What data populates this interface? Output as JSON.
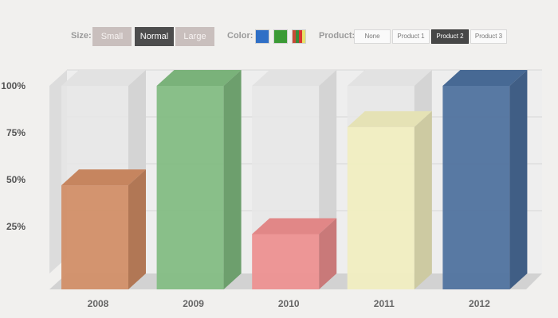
{
  "controls": {
    "size_label": "Size:",
    "sizes": [
      "Small",
      "Normal",
      "Large"
    ],
    "selected_size": "Normal",
    "color_label": "Color:",
    "color_swatches": [
      {
        "name": "blue-swatch",
        "colors": [
          "#2f6fc6"
        ]
      },
      {
        "name": "green-swatch",
        "colors": [
          "#3b9a35"
        ]
      },
      {
        "name": "multicolor-swatch",
        "colors": [
          "#c84a36",
          "#3b8a3a",
          "#d9352f",
          "#e6e36b"
        ]
      }
    ],
    "product_label": "Product:",
    "products": [
      "None",
      "Product 1",
      "Product 2",
      "Product 3"
    ],
    "selected_product": "Product 2"
  },
  "chart_data": {
    "type": "bar",
    "categories": [
      "2008",
      "2009",
      "2010",
      "2011",
      "2012"
    ],
    "values": [
      47,
      100,
      21,
      78,
      100
    ],
    "colors": [
      "#d08c64",
      "#80bb80",
      "#ed8e8e",
      "#f1eebf",
      "#4b6f9c"
    ],
    "yticks": [
      "25%",
      "50%",
      "75%",
      "100%"
    ],
    "ylim": [
      0,
      100
    ],
    "background_bars": true
  }
}
